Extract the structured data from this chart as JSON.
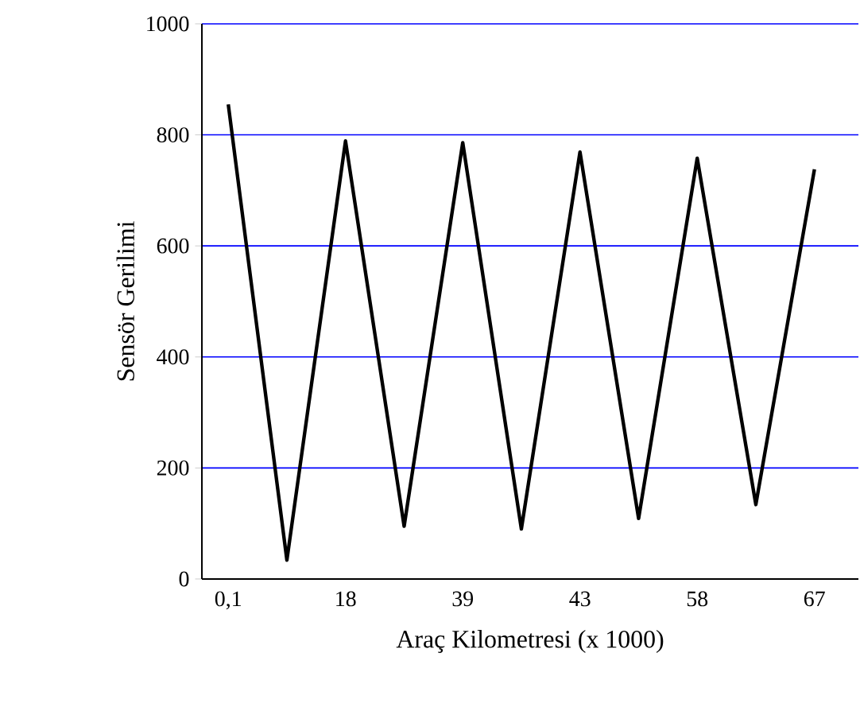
{
  "chart_data": {
    "type": "line",
    "xlabel": "Araç Kilometresi (x 1000)",
    "ylabel": "Sensör Gerilimi",
    "categories": [
      "0,1",
      null,
      "18",
      null,
      "39",
      null,
      "43",
      null,
      "58",
      null,
      "67"
    ],
    "series": [
      {
        "color": "#000000",
        "values": [
          855,
          34,
          789,
          95,
          786,
          90,
          769,
          109,
          758,
          134,
          738
        ]
      }
    ],
    "ylim": [
      0,
      1000
    ],
    "yticks": [
      0,
      200,
      400,
      600,
      800,
      1000
    ],
    "grid": "y",
    "marker": "none",
    "line_style": "solid"
  }
}
